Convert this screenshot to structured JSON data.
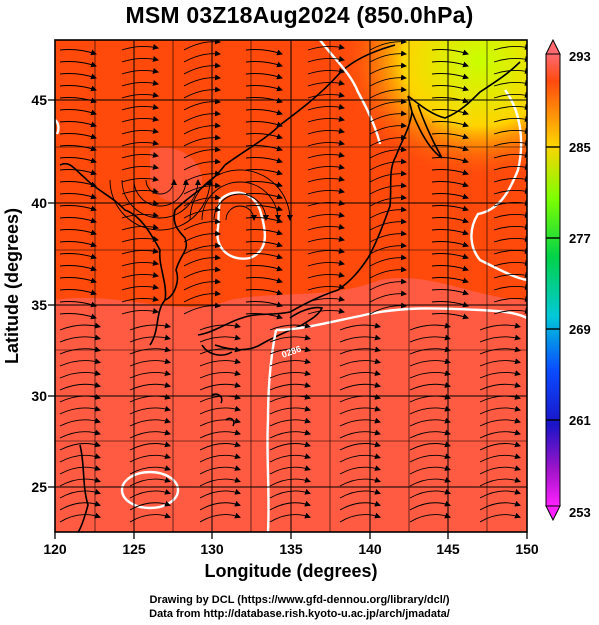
{
  "title": "MSM 03Z18Aug2024 (850.0hPa)",
  "x_axis": {
    "label": "Longitude (degrees)",
    "ticks": [
      "120",
      "125",
      "130",
      "135",
      "140",
      "145",
      "150"
    ]
  },
  "y_axis": {
    "label": "Latitude  (degrees)",
    "ticks": [
      "25",
      "30",
      "35",
      "40",
      "45"
    ]
  },
  "colorbar": {
    "labels": [
      "293",
      "285",
      "277",
      "269",
      "261",
      "253"
    ],
    "colors": [
      "#ff6a70",
      "#ff4a10",
      "#ffd200",
      "#7dff00",
      "#00d24a",
      "#00c8d8",
      "#0a4cff",
      "#1a14c8",
      "#a014c8",
      "#ff20ff"
    ]
  },
  "contour_label": "0286",
  "credits": {
    "drawing": "Drawing by DCL (https://www.gfd-dennou.org/library/dcl/)",
    "data": "Data from http://database.rish.kyoto-u.ac.jp/arch/jmadata/"
  },
  "colors": {
    "warm_field": "#ff4a0c",
    "hot_field": "#ff6a70",
    "cool_field": "#ffd400",
    "contour": "#ffffff",
    "streamline": "#000000"
  }
}
